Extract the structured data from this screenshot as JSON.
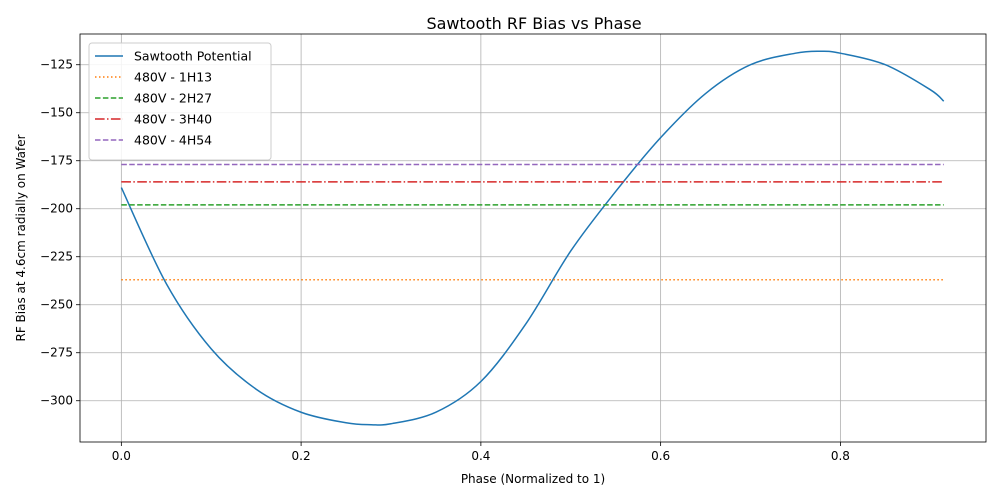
{
  "chart_data": {
    "type": "line",
    "title": "Sawtooth RF Bias vs Phase",
    "xlabel": "Phase (Normalized to 1)",
    "ylabel": "RF Bias at 4.6cm radially on Wafer",
    "xlim": [
      -0.046,
      0.962
    ],
    "ylim": [
      -321.5,
      -109.0
    ],
    "xticks": [
      0.0,
      0.2,
      0.4,
      0.6,
      0.8
    ],
    "xtick_labels": [
      "0.0",
      "0.2",
      "0.4",
      "0.6",
      "0.8"
    ],
    "yticks": [
      -300,
      -275,
      -250,
      -225,
      -200,
      -175,
      -150,
      -125
    ],
    "ytick_labels": [
      "−300",
      "−275",
      "−250",
      "−225",
      "−200",
      "−175",
      "−150",
      "−125"
    ],
    "grid": true,
    "legend_position": "top-left",
    "series": [
      {
        "name": "Sawtooth Potential",
        "color": "#1f77b4",
        "style": "solid",
        "x": [
          0.0,
          0.05,
          0.1,
          0.15,
          0.2,
          0.25,
          0.278,
          0.3,
          0.35,
          0.4,
          0.45,
          0.5,
          0.55,
          0.6,
          0.65,
          0.7,
          0.75,
          0.778,
          0.8,
          0.85,
          0.9,
          0.915
        ],
        "y": [
          -189,
          -239,
          -273,
          -294,
          -306,
          -311.5,
          -312.5,
          -312,
          -306,
          -290,
          -260,
          -222,
          -191,
          -163,
          -140,
          -125,
          -119,
          -118,
          -119,
          -125,
          -138,
          -144
        ]
      },
      {
        "name": "480V - 1H13",
        "color": "#ff7f0e",
        "style": "dotted",
        "x": [
          0.0,
          0.915
        ],
        "y": [
          -237,
          -237
        ]
      },
      {
        "name": "480V - 2H27",
        "color": "#2ca02c",
        "style": "dashed",
        "x": [
          0.0,
          0.915
        ],
        "y": [
          -198,
          -198
        ]
      },
      {
        "name": "480V - 3H40",
        "color": "#d62728",
        "style": "dashdot",
        "x": [
          0.0,
          0.915
        ],
        "y": [
          -186,
          -186
        ]
      },
      {
        "name": "480V - 4H54",
        "color": "#9467bd",
        "style": "dashed",
        "x": [
          0.0,
          0.915
        ],
        "y": [
          -177,
          -177
        ]
      }
    ]
  }
}
